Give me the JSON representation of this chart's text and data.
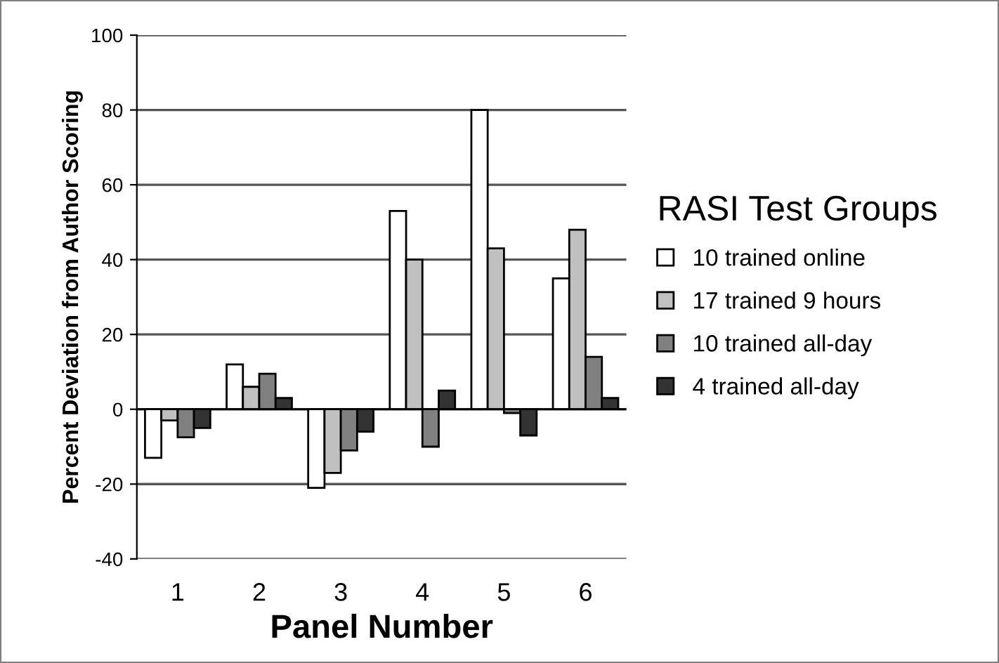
{
  "chart_data": {
    "type": "bar",
    "xlabel": "Panel Number",
    "ylabel": "Percent Deviation from Author Scoring",
    "legend_title": "RASI Test Groups",
    "categories": [
      "1",
      "2",
      "3",
      "4",
      "5",
      "6"
    ],
    "series": [
      {
        "name": "10 trained online",
        "color": "#ffffff",
        "values": [
          -13,
          12,
          -21,
          53,
          80,
          35
        ]
      },
      {
        "name": "17 trained 9 hours",
        "color": "#c0c0c0",
        "values": [
          -3,
          6,
          -17,
          40,
          43,
          48
        ]
      },
      {
        "name": "10 trained all-day",
        "color": "#808080",
        "values": [
          -7.5,
          9.5,
          -11,
          -10,
          -1,
          14
        ]
      },
      {
        "name": "4 trained all-day",
        "color": "#333333",
        "values": [
          -5,
          3,
          -6,
          5,
          -7,
          3
        ]
      }
    ],
    "ylim": [
      -40,
      100
    ],
    "yticks": [
      -40,
      -20,
      0,
      20,
      40,
      60,
      80,
      100
    ],
    "grid": "y",
    "legend": "right"
  }
}
